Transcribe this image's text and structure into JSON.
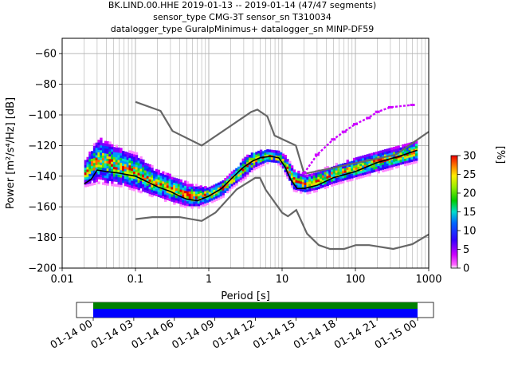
{
  "chart_data": {
    "type": "heatmap",
    "title_lines": [
      "BK.LIND.00.HHE   2019-01-13 -- 2019-01-14  (47/47 segments)",
      "sensor_type CMG-3T sensor_sn T310034",
      "datalogger_type GuralpMinimus+ datalogger_sn MINP-DF59"
    ],
    "xlabel": "Period [s]",
    "ylabel": "Power [m²/s⁴/Hz] [dB]",
    "xscale": "log",
    "xlim": [
      0.01,
      1000
    ],
    "ylim": [
      -200,
      -50
    ],
    "x_tick_labels": [
      "0.01",
      "0.1",
      "1",
      "10",
      "100",
      "1000"
    ],
    "y_tick_labels": [
      "−200",
      "−180",
      "−160",
      "−140",
      "−120",
      "−100",
      "−80",
      "−60"
    ],
    "y_ticks": [
      -200,
      -180,
      -160,
      -140,
      -120,
      -100,
      -80,
      -60
    ],
    "grid": true,
    "colorbar": {
      "label": "[%]",
      "range": [
        0,
        30
      ],
      "tick_labels": [
        "0",
        "5",
        "10",
        "15",
        "20",
        "25",
        "30"
      ],
      "ticks": [
        0,
        5,
        10,
        15,
        20,
        25,
        30
      ]
    },
    "series": [
      {
        "role": "mode",
        "color": "#000000",
        "points": [
          [
            0.02,
            -145
          ],
          [
            0.025,
            -142
          ],
          [
            0.03,
            -136
          ],
          [
            0.04,
            -137
          ],
          [
            0.06,
            -138
          ],
          [
            0.1,
            -140
          ],
          [
            0.15,
            -144
          ],
          [
            0.2,
            -147
          ],
          [
            0.3,
            -150
          ],
          [
            0.4,
            -153
          ],
          [
            0.5,
            -155
          ],
          [
            0.7,
            -156
          ],
          [
            1.0,
            -153
          ],
          [
            1.5,
            -148
          ],
          [
            2,
            -142
          ],
          [
            3,
            -134
          ],
          [
            4,
            -130
          ],
          [
            5,
            -128
          ],
          [
            7,
            -127
          ],
          [
            9,
            -128
          ],
          [
            11,
            -134
          ],
          [
            13,
            -142
          ],
          [
            16,
            -148
          ],
          [
            20,
            -148
          ],
          [
            30,
            -146
          ],
          [
            50,
            -141
          ],
          [
            100,
            -137
          ],
          [
            200,
            -131
          ],
          [
            400,
            -127
          ],
          [
            700,
            -123
          ]
        ]
      },
      {
        "role": "nhnm",
        "color": "#666666",
        "points": [
          [
            0.1,
            -91.5
          ],
          [
            0.22,
            -97.4
          ],
          [
            0.32,
            -110.5
          ],
          [
            0.8,
            -120
          ],
          [
            3.8,
            -98
          ],
          [
            4.6,
            -96.5
          ],
          [
            6.3,
            -101
          ],
          [
            7.9,
            -113.5
          ],
          [
            15.4,
            -120
          ],
          [
            20,
            -138.5
          ],
          [
            354.8,
            -126
          ],
          [
            1000,
            -111
          ]
        ]
      },
      {
        "role": "nlnm",
        "color": "#666666",
        "points": [
          [
            0.1,
            -168
          ],
          [
            0.17,
            -166.7
          ],
          [
            0.4,
            -166.7
          ],
          [
            0.8,
            -169.2
          ],
          [
            1.24,
            -163.7
          ],
          [
            2.4,
            -148.6
          ],
          [
            4.3,
            -141.1
          ],
          [
            5,
            -141.1
          ],
          [
            6,
            -149
          ],
          [
            10,
            -163.8
          ],
          [
            12,
            -166.2
          ],
          [
            15.6,
            -162.1
          ],
          [
            21.9,
            -177.5
          ],
          [
            31.6,
            -185
          ],
          [
            45,
            -187.5
          ],
          [
            70,
            -187.5
          ],
          [
            101,
            -185
          ],
          [
            154,
            -185
          ],
          [
            328,
            -187.5
          ],
          [
            600,
            -184.4
          ],
          [
            1000,
            -178
          ]
        ]
      },
      {
        "role": "outlier-trace",
        "color": "#cc00ff",
        "points": [
          [
            20,
            -138
          ],
          [
            30,
            -126
          ],
          [
            50,
            -116
          ],
          [
            70,
            -111
          ],
          [
            100,
            -106
          ],
          [
            150,
            -102
          ],
          [
            200,
            -98
          ],
          [
            300,
            -95
          ],
          [
            600,
            -93.5
          ]
        ]
      }
    ],
    "density_band": [
      {
        "x": 0.02,
        "lo": -147,
        "hi": -130
      },
      {
        "x": 0.03,
        "lo": -145,
        "hi": -115
      },
      {
        "x": 0.04,
        "lo": -146,
        "hi": -118
      },
      {
        "x": 0.06,
        "lo": -147,
        "hi": -122
      },
      {
        "x": 0.1,
        "lo": -150,
        "hi": -126
      },
      {
        "x": 0.15,
        "lo": -153,
        "hi": -133
      },
      {
        "x": 0.2,
        "lo": -155,
        "hi": -137
      },
      {
        "x": 0.3,
        "lo": -158,
        "hi": -140
      },
      {
        "x": 0.5,
        "lo": -161,
        "hi": -145
      },
      {
        "x": 0.7,
        "lo": -161,
        "hi": -147
      },
      {
        "x": 1.0,
        "lo": -158,
        "hi": -147
      },
      {
        "x": 1.5,
        "lo": -154,
        "hi": -143
      },
      {
        "x": 2,
        "lo": -148,
        "hi": -138
      },
      {
        "x": 3,
        "lo": -142,
        "hi": -128
      },
      {
        "x": 4,
        "lo": -136,
        "hi": -124
      },
      {
        "x": 6,
        "lo": -132,
        "hi": -123
      },
      {
        "x": 9,
        "lo": -133,
        "hi": -124
      },
      {
        "x": 11,
        "lo": -140,
        "hi": -128
      },
      {
        "x": 14,
        "lo": -150,
        "hi": -136
      },
      {
        "x": 20,
        "lo": -152,
        "hi": -140
      },
      {
        "x": 30,
        "lo": -150,
        "hi": -137
      },
      {
        "x": 50,
        "lo": -146,
        "hi": -133
      },
      {
        "x": 100,
        "lo": -142,
        "hi": -128
      },
      {
        "x": 200,
        "lo": -138,
        "hi": -124
      },
      {
        "x": 400,
        "lo": -134,
        "hi": -121
      },
      {
        "x": 700,
        "lo": -131,
        "hi": -117
      }
    ]
  },
  "timeline": {
    "date_labels": [
      "01-14 00",
      "01-14 03",
      "01-14 06",
      "01-14 09",
      "01-14 12",
      "01-14 15",
      "01-14 18",
      "01-14 21",
      "01-15 00"
    ],
    "bar_colors": {
      "top": "#008000",
      "bottom": "#0000ff"
    }
  }
}
